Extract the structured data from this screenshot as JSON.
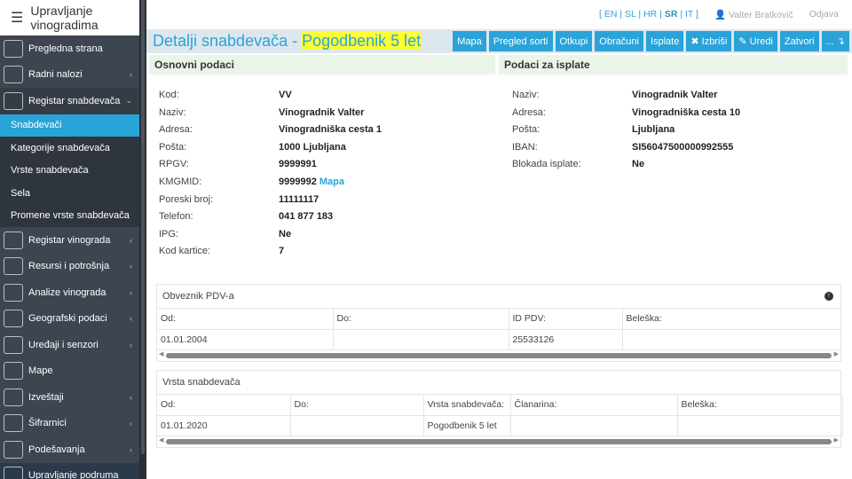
{
  "sidebar": {
    "app_title": "Upravljanje vinogradima",
    "items": [
      {
        "label": "Pregledna strana",
        "icon": "dashboard-icon",
        "chevron": ""
      },
      {
        "label": "Radni nalozi",
        "icon": "clipboard-icon",
        "chevron": "‹"
      },
      {
        "label": "Registar snabdevača",
        "icon": "farmer-icon",
        "chevron": "⌄"
      }
    ],
    "subitems": [
      {
        "label": "Snabdevači"
      },
      {
        "label": "Kategorije snabdevača"
      },
      {
        "label": "Vrste snabdevača"
      },
      {
        "label": "Sela"
      },
      {
        "label": "Promene vrste snabdevača"
      }
    ],
    "items2": [
      {
        "label": "Registar vinograda",
        "icon": "vineyard-icon",
        "chevron": "‹"
      },
      {
        "label": "Resursi i potrošnja",
        "icon": "resources-icon",
        "chevron": "‹"
      },
      {
        "label": "Analize vinograda",
        "icon": "plant-icon",
        "chevron": "‹"
      },
      {
        "label": "Geografski podaci",
        "icon": "drone-icon",
        "chevron": "‹"
      },
      {
        "label": "Uređaji i senzori",
        "icon": "sensor-icon",
        "chevron": "‹"
      },
      {
        "label": "Mape",
        "icon": "map-icon",
        "chevron": ""
      },
      {
        "label": "Izveštaji",
        "icon": "report-icon",
        "chevron": "‹"
      },
      {
        "label": "Šifrarnici",
        "icon": "list-icon",
        "chevron": "‹"
      },
      {
        "label": "Podešavanja",
        "icon": "gear-icon",
        "chevron": "‹"
      },
      {
        "label": "Upravljanje podruma",
        "icon": "cellar-icon",
        "chevron": ""
      }
    ]
  },
  "top": {
    "langs": [
      "EN",
      "SL",
      "HR",
      "SR",
      "IT"
    ],
    "active_lang": "SR",
    "user": "Valter Bratkovič",
    "logout": "Odjava"
  },
  "header": {
    "title": "Detalji snabdevača - ",
    "highlight": "Pogodbenik 5 let",
    "buttons": [
      "Mapa",
      "Pregled sorti",
      "Otkupi",
      "Obračuni",
      "Isplate",
      "✖ Izbriši",
      "✎ Uredi",
      "Zatvori",
      "... ↴"
    ]
  },
  "basic": {
    "title": "Osnovni podaci",
    "rows": [
      {
        "k": "Kod:",
        "v": "VV"
      },
      {
        "k": "Naziv:",
        "v": "Vinogradnik Valter"
      },
      {
        "k": "Adresa:",
        "v": "Vinogradniška cesta 1"
      },
      {
        "k": "Pošta:",
        "v": "1000 Ljubljana"
      },
      {
        "k": "RPGV:",
        "v": "9999991"
      },
      {
        "k": "KMGMID:",
        "v": "9999992",
        "link": "Mapa"
      },
      {
        "k": "Poreski broj:",
        "v": "11111117"
      },
      {
        "k": "Telefon:",
        "v": "041 877 183"
      },
      {
        "k": "IPG:",
        "v": "Ne"
      },
      {
        "k": "Kod kartice:",
        "v": "7"
      }
    ]
  },
  "payment": {
    "title": "Podaci za isplate",
    "rows": [
      {
        "k": "Naziv:",
        "v": "Vinogradnik Valter"
      },
      {
        "k": "Adresa:",
        "v": "Vinogradniška cesta 10"
      },
      {
        "k": "Pošta:",
        "v": "Ljubljana"
      },
      {
        "k": "IBAN:",
        "v": "SI56047500000992555"
      },
      {
        "k": "Blokada isplate:",
        "v": "Ne"
      }
    ]
  },
  "vat": {
    "title": "Obveznik PDV-a",
    "headers": [
      "Od:",
      "Do:",
      "ID PDV:",
      "Beleška:"
    ],
    "rows": [
      [
        "01.01.2004",
        "",
        "25533126",
        ""
      ]
    ]
  },
  "type": {
    "title": "Vrsta snabdevača",
    "headers": [
      "Od:",
      "Do:",
      "Vrsta snabdevača:",
      "Članarina:",
      "Beleška:"
    ],
    "rows": [
      [
        "01.01.2020",
        "",
        "Pogodbenik 5 let",
        "",
        ""
      ]
    ]
  }
}
